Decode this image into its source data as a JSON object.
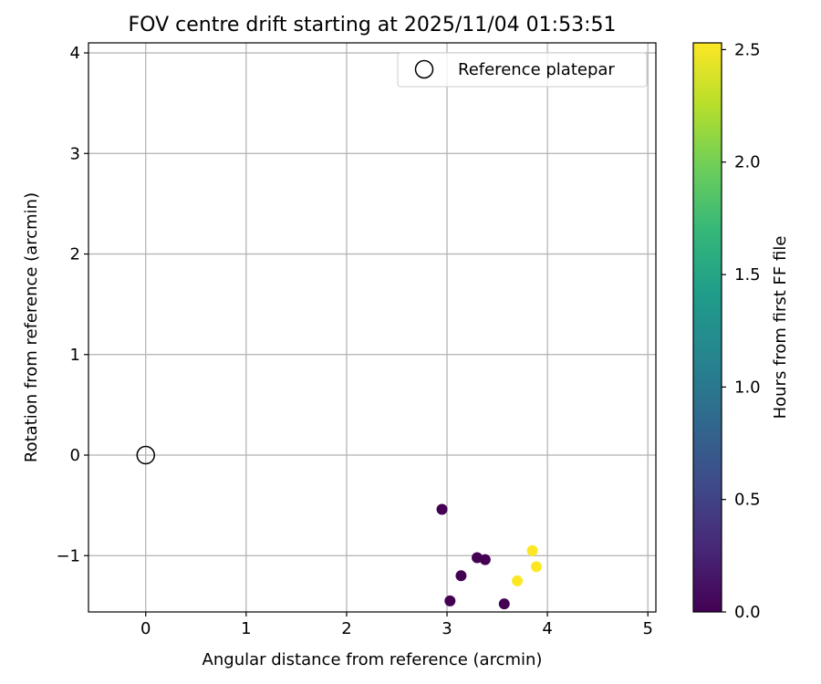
{
  "chart_data": {
    "type": "scatter",
    "title": "FOV centre drift starting at 2025/11/04 01:53:51",
    "xlabel": "Angular distance from reference (arcmin)",
    "ylabel": "Rotation from reference (arcmin)",
    "xlim": [
      -0.57,
      5.08
    ],
    "ylim": [
      -1.56,
      4.1
    ],
    "grid": true,
    "x_ticks": [
      0,
      1,
      2,
      3,
      4,
      5
    ],
    "x_tick_labels": [
      "0",
      "1",
      "2",
      "3",
      "4",
      "5"
    ],
    "y_ticks": [
      -1,
      0,
      1,
      2,
      3,
      4
    ],
    "y_tick_labels": [
      "−1",
      "0",
      "1",
      "2",
      "3",
      "4"
    ],
    "reference": {
      "label": "Reference platepar",
      "x": 0,
      "y": 0
    },
    "legend": {
      "entries": [
        "Reference platepar"
      ],
      "location": "top-right"
    },
    "colorbar": {
      "label": "Hours from first FF file",
      "range": [
        0.0,
        2.53
      ],
      "ticks": [
        0.0,
        0.5,
        1.0,
        1.5,
        2.0,
        2.5
      ],
      "tick_labels": [
        "0.0",
        "0.5",
        "1.0",
        "1.5",
        "2.0",
        "2.5"
      ],
      "colormap": "viridis",
      "colors": [
        "#440154",
        "#482777",
        "#3f4a8a",
        "#31678e",
        "#26838f",
        "#1f9d8a",
        "#35b779",
        "#6cce5a",
        "#b6de2b",
        "#fde725"
      ]
    },
    "points": [
      {
        "x": 2.95,
        "y": -0.54,
        "hours": 0.0
      },
      {
        "x": 3.3,
        "y": -1.02,
        "hours": 0.0
      },
      {
        "x": 3.38,
        "y": -1.04,
        "hours": 0.0
      },
      {
        "x": 3.14,
        "y": -1.2,
        "hours": 0.0
      },
      {
        "x": 3.03,
        "y": -1.45,
        "hours": 0.0
      },
      {
        "x": 3.57,
        "y": -1.48,
        "hours": 0.0
      },
      {
        "x": 3.85,
        "y": -0.95,
        "hours": 2.53
      },
      {
        "x": 3.89,
        "y": -1.11,
        "hours": 2.53
      },
      {
        "x": 3.7,
        "y": -1.25,
        "hours": 2.53
      }
    ]
  }
}
